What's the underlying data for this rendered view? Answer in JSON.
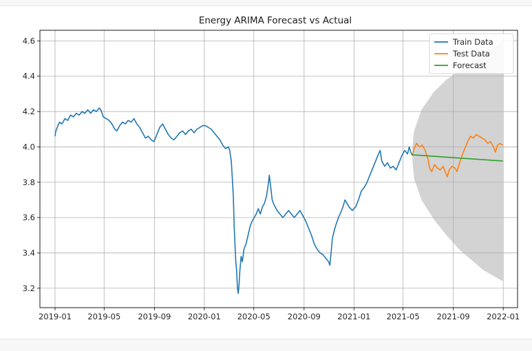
{
  "chart_data": {
    "type": "line",
    "title": "Energy ARIMA Forecast vs Actual",
    "xlabel": "",
    "ylabel": "",
    "x_axis_type": "date",
    "xlim": [
      "2018-11-25",
      "2022-02-05"
    ],
    "ylim": [
      3.09,
      4.66
    ],
    "xticks": [
      "2019-01",
      "2019-05",
      "2019-09",
      "2020-01",
      "2020-05",
      "2020-09",
      "2021-01",
      "2021-05",
      "2021-09",
      "2022-01"
    ],
    "yticks": [
      "3.2",
      "3.4",
      "3.6",
      "3.8",
      "4.0",
      "4.2",
      "4.4",
      "4.6"
    ],
    "grid": true,
    "legend": "top-right",
    "series": [
      {
        "name": "Train Data",
        "color": "#1f77b4",
        "points": [
          [
            "2019-01-01",
            4.06
          ],
          [
            "2019-01-03",
            4.09
          ],
          [
            "2019-01-08",
            4.12
          ],
          [
            "2019-01-12",
            4.14
          ],
          [
            "2019-01-18",
            4.13
          ],
          [
            "2019-01-25",
            4.16
          ],
          [
            "2019-02-01",
            4.15
          ],
          [
            "2019-02-08",
            4.18
          ],
          [
            "2019-02-15",
            4.17
          ],
          [
            "2019-02-22",
            4.19
          ],
          [
            "2019-03-01",
            4.18
          ],
          [
            "2019-03-08",
            4.2
          ],
          [
            "2019-03-15",
            4.19
          ],
          [
            "2019-03-22",
            4.21
          ],
          [
            "2019-03-29",
            4.19
          ],
          [
            "2019-04-05",
            4.21
          ],
          [
            "2019-04-12",
            4.2
          ],
          [
            "2019-04-19",
            4.22
          ],
          [
            "2019-04-23",
            4.21
          ],
          [
            "2019-04-29",
            4.17
          ],
          [
            "2019-05-06",
            4.16
          ],
          [
            "2019-05-13",
            4.15
          ],
          [
            "2019-05-20",
            4.13
          ],
          [
            "2019-05-27",
            4.1
          ],
          [
            "2019-06-01",
            4.09
          ],
          [
            "2019-06-08",
            4.12
          ],
          [
            "2019-06-15",
            4.14
          ],
          [
            "2019-06-22",
            4.13
          ],
          [
            "2019-06-29",
            4.15
          ],
          [
            "2019-07-06",
            4.14
          ],
          [
            "2019-07-13",
            4.16
          ],
          [
            "2019-07-20",
            4.13
          ],
          [
            "2019-07-27",
            4.11
          ],
          [
            "2019-08-03",
            4.08
          ],
          [
            "2019-08-10",
            4.05
          ],
          [
            "2019-08-17",
            4.06
          ],
          [
            "2019-08-24",
            4.04
          ],
          [
            "2019-08-31",
            4.03
          ],
          [
            "2019-09-07",
            4.07
          ],
          [
            "2019-09-14",
            4.11
          ],
          [
            "2019-09-21",
            4.13
          ],
          [
            "2019-09-28",
            4.1
          ],
          [
            "2019-10-05",
            4.07
          ],
          [
            "2019-10-12",
            4.05
          ],
          [
            "2019-10-19",
            4.04
          ],
          [
            "2019-10-26",
            4.06
          ],
          [
            "2019-11-02",
            4.08
          ],
          [
            "2019-11-09",
            4.09
          ],
          [
            "2019-11-16",
            4.07
          ],
          [
            "2019-11-23",
            4.09
          ],
          [
            "2019-11-30",
            4.1
          ],
          [
            "2019-12-07",
            4.08
          ],
          [
            "2019-12-14",
            4.1
          ],
          [
            "2019-12-21",
            4.11
          ],
          [
            "2019-12-28",
            4.12
          ],
          [
            "2020-01-04",
            4.12
          ],
          [
            "2020-01-11",
            4.11
          ],
          [
            "2020-01-18",
            4.1
          ],
          [
            "2020-01-25",
            4.08
          ],
          [
            "2020-02-01",
            4.06
          ],
          [
            "2020-02-08",
            4.04
          ],
          [
            "2020-02-15",
            4.01
          ],
          [
            "2020-02-22",
            3.99
          ],
          [
            "2020-02-29",
            4.0
          ],
          [
            "2020-03-03",
            3.98
          ],
          [
            "2020-03-07",
            3.92
          ],
          [
            "2020-03-09",
            3.84
          ],
          [
            "2020-03-12",
            3.72
          ],
          [
            "2020-03-14",
            3.55
          ],
          [
            "2020-03-16",
            3.45
          ],
          [
            "2020-03-18",
            3.35
          ],
          [
            "2020-03-20",
            3.3
          ],
          [
            "2020-03-22",
            3.2
          ],
          [
            "2020-03-24",
            3.17
          ],
          [
            "2020-03-26",
            3.22
          ],
          [
            "2020-03-28",
            3.3
          ],
          [
            "2020-03-31",
            3.38
          ],
          [
            "2020-04-03",
            3.35
          ],
          [
            "2020-04-07",
            3.42
          ],
          [
            "2020-04-12",
            3.45
          ],
          [
            "2020-04-17",
            3.5
          ],
          [
            "2020-04-22",
            3.55
          ],
          [
            "2020-04-27",
            3.58
          ],
          [
            "2020-05-02",
            3.6
          ],
          [
            "2020-05-07",
            3.62
          ],
          [
            "2020-05-12",
            3.65
          ],
          [
            "2020-05-17",
            3.62
          ],
          [
            "2020-05-22",
            3.66
          ],
          [
            "2020-05-27",
            3.68
          ],
          [
            "2020-06-01",
            3.72
          ],
          [
            "2020-06-05",
            3.78
          ],
          [
            "2020-06-08",
            3.84
          ],
          [
            "2020-06-11",
            3.78
          ],
          [
            "2020-06-15",
            3.7
          ],
          [
            "2020-06-20",
            3.67
          ],
          [
            "2020-06-27",
            3.64
          ],
          [
            "2020-07-04",
            3.62
          ],
          [
            "2020-07-11",
            3.6
          ],
          [
            "2020-07-18",
            3.62
          ],
          [
            "2020-07-25",
            3.64
          ],
          [
            "2020-08-01",
            3.62
          ],
          [
            "2020-08-08",
            3.6
          ],
          [
            "2020-08-15",
            3.62
          ],
          [
            "2020-08-22",
            3.64
          ],
          [
            "2020-08-29",
            3.61
          ],
          [
            "2020-09-05",
            3.58
          ],
          [
            "2020-09-12",
            3.54
          ],
          [
            "2020-09-19",
            3.5
          ],
          [
            "2020-09-26",
            3.45
          ],
          [
            "2020-10-03",
            3.42
          ],
          [
            "2020-10-10",
            3.4
          ],
          [
            "2020-10-17",
            3.39
          ],
          [
            "2020-10-24",
            3.37
          ],
          [
            "2020-10-31",
            3.35
          ],
          [
            "2020-11-03",
            3.33
          ],
          [
            "2020-11-06",
            3.4
          ],
          [
            "2020-11-09",
            3.48
          ],
          [
            "2020-11-13",
            3.52
          ],
          [
            "2020-11-18",
            3.56
          ],
          [
            "2020-11-24",
            3.6
          ],
          [
            "2020-11-30",
            3.63
          ],
          [
            "2020-12-05",
            3.66
          ],
          [
            "2020-12-10",
            3.7
          ],
          [
            "2020-12-15",
            3.68
          ],
          [
            "2020-12-20",
            3.66
          ],
          [
            "2020-12-28",
            3.64
          ],
          [
            "2021-01-05",
            3.66
          ],
          [
            "2021-01-12",
            3.7
          ],
          [
            "2021-01-19",
            3.75
          ],
          [
            "2021-01-26",
            3.77
          ],
          [
            "2021-02-02",
            3.8
          ],
          [
            "2021-02-09",
            3.84
          ],
          [
            "2021-02-16",
            3.88
          ],
          [
            "2021-02-23",
            3.92
          ],
          [
            "2021-03-02",
            3.96
          ],
          [
            "2021-03-06",
            3.98
          ],
          [
            "2021-03-10",
            3.92
          ],
          [
            "2021-03-17",
            3.89
          ],
          [
            "2021-03-24",
            3.91
          ],
          [
            "2021-03-31",
            3.88
          ],
          [
            "2021-04-07",
            3.89
          ],
          [
            "2021-04-14",
            3.87
          ],
          [
            "2021-04-21",
            3.91
          ],
          [
            "2021-04-28",
            3.95
          ],
          [
            "2021-05-05",
            3.98
          ],
          [
            "2021-05-12",
            3.96
          ],
          [
            "2021-05-16",
            4.0
          ],
          [
            "2021-05-20",
            3.97
          ],
          [
            "2021-05-24",
            3.95
          ]
        ]
      },
      {
        "name": "Test Data",
        "color": "#ff7f0e",
        "points": [
          [
            "2021-05-24",
            3.95
          ],
          [
            "2021-05-28",
            3.99
          ],
          [
            "2021-06-03",
            4.02
          ],
          [
            "2021-06-10",
            4.0
          ],
          [
            "2021-06-17",
            4.01
          ],
          [
            "2021-06-24",
            3.98
          ],
          [
            "2021-07-01",
            3.93
          ],
          [
            "2021-07-05",
            3.88
          ],
          [
            "2021-07-10",
            3.86
          ],
          [
            "2021-07-17",
            3.9
          ],
          [
            "2021-07-24",
            3.88
          ],
          [
            "2021-07-31",
            3.87
          ],
          [
            "2021-08-07",
            3.89
          ],
          [
            "2021-08-12",
            3.86
          ],
          [
            "2021-08-17",
            3.83
          ],
          [
            "2021-08-22",
            3.87
          ],
          [
            "2021-08-29",
            3.89
          ],
          [
            "2021-09-05",
            3.88
          ],
          [
            "2021-09-10",
            3.86
          ],
          [
            "2021-09-15",
            3.9
          ],
          [
            "2021-09-22",
            3.95
          ],
          [
            "2021-09-29",
            3.99
          ],
          [
            "2021-10-06",
            4.03
          ],
          [
            "2021-10-13",
            4.06
          ],
          [
            "2021-10-20",
            4.05
          ],
          [
            "2021-10-27",
            4.07
          ],
          [
            "2021-11-03",
            4.06
          ],
          [
            "2021-11-10",
            4.05
          ],
          [
            "2021-11-17",
            4.04
          ],
          [
            "2021-11-24",
            4.02
          ],
          [
            "2021-12-01",
            4.03
          ],
          [
            "2021-12-08",
            4.0
          ],
          [
            "2021-12-13",
            3.97
          ],
          [
            "2021-12-18",
            4.01
          ],
          [
            "2021-12-24",
            4.02
          ],
          [
            "2021-12-31",
            4.01
          ]
        ]
      },
      {
        "name": "Forecast",
        "color": "#2ca02c",
        "points": [
          [
            "2021-05-24",
            3.955
          ],
          [
            "2021-12-31",
            3.92
          ]
        ]
      }
    ],
    "confidence_band": {
      "color": "#d3d3d3",
      "points": [
        [
          "2021-05-24",
          3.92,
          4.0
        ],
        [
          "2021-05-28",
          3.82,
          4.09
        ],
        [
          "2021-06-15",
          3.7,
          4.21
        ],
        [
          "2021-07-15",
          3.59,
          4.31
        ],
        [
          "2021-08-15",
          3.5,
          4.38
        ],
        [
          "2021-09-15",
          3.42,
          4.43
        ],
        [
          "2021-10-15",
          3.36,
          4.48
        ],
        [
          "2021-11-15",
          3.3,
          4.53
        ],
        [
          "2021-12-31",
          3.24,
          4.6
        ]
      ]
    }
  }
}
